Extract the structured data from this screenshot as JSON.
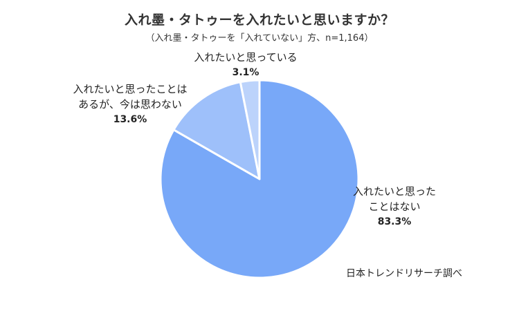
{
  "chart_data": {
    "type": "pie",
    "title": "入れ墨・タトゥーを入れたいと思いますか？",
    "subtitle": "（入れ墨・タトゥーを「入れていない」方、n=1,164）",
    "slices": [
      {
        "label_lines": [
          "入れたいと思った",
          "ことはない"
        ],
        "value": 83.3,
        "value_label": "83.3%",
        "color": "#78a8f8"
      },
      {
        "label_lines": [
          "入れたいと思ったことは",
          "あるが、今は思わない"
        ],
        "value": 13.6,
        "value_label": "13.6%",
        "color": "#9ec0fa"
      },
      {
        "label_lines": [
          "入れたいと思っている"
        ],
        "value": 3.1,
        "value_label": "3.1%",
        "color": "#bcd3fb"
      }
    ],
    "source": "日本トレンドリサーチ調べ"
  }
}
